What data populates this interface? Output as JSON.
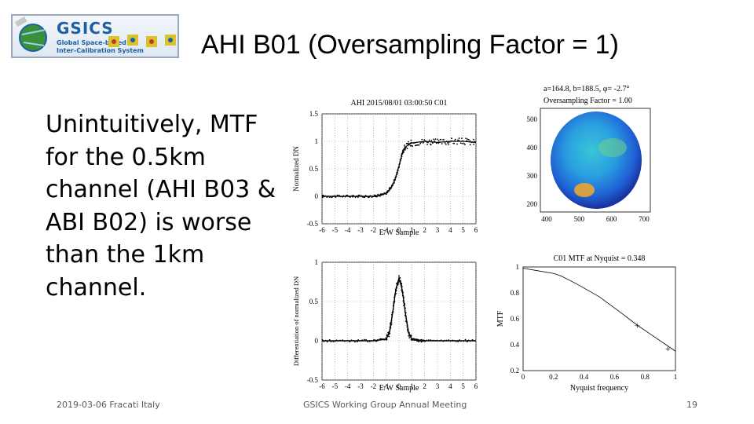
{
  "slide": {
    "title": "AHI B01 (Oversampling Factor = 1)",
    "bullet": "Unintuitively, MTF for the 0.5km channel (AHI B03 & ABI B02) is worse than the 1km channel.",
    "footer_left": "2019-03-06 Fracati Italy",
    "footer_center": "GSICS Working Group Annual Meeting",
    "page_number": "19"
  },
  "logo": {
    "word": "GSICS",
    "line1": "Global Space-based",
    "line2": "Inter-Calibration System"
  },
  "chart_data": [
    {
      "type": "scatter",
      "title": "AHI 2015/08/01 03:00:50 C01",
      "xlabel": "E/W Sample",
      "ylabel": "Normalized DN",
      "xlim": [
        -6,
        6
      ],
      "ylim": [
        -0.5,
        1.5
      ],
      "xticks": [
        "-6",
        "-5",
        "-4",
        "-3",
        "-2",
        "-1",
        "0",
        "1",
        "2",
        "3",
        "4",
        "5",
        "6"
      ],
      "yticks": [
        "-0.5",
        "0",
        "0.5",
        "1",
        "1.5"
      ],
      "x": [
        -6,
        -5,
        -4,
        -3,
        -2,
        -1.5,
        -1,
        -0.5,
        -0.25,
        0,
        0.25,
        0.5,
        1,
        2,
        3,
        4,
        5,
        6
      ],
      "y": [
        0.0,
        0.0,
        0.0,
        0.0,
        0.0,
        0.02,
        0.05,
        0.2,
        0.35,
        0.55,
        0.78,
        0.9,
        0.97,
        1.0,
        0.98,
        1.0,
        1.0,
        0.98
      ],
      "grid": true
    },
    {
      "type": "heatmap",
      "annotation_line1": "a=164.8, b=188.5, φ= -2.7°",
      "annotation_line2": "Oversampling Factor = 1.00",
      "xticks": [
        "400",
        "500",
        "600",
        "700"
      ],
      "yticks": [
        "500",
        "400",
        "300",
        "200"
      ]
    },
    {
      "type": "scatter",
      "xlabel": "E/W Sample",
      "ylabel": "Differentiation of normalized DN",
      "xlim": [
        -6,
        6
      ],
      "ylim": [
        -0.5,
        1
      ],
      "xticks": [
        "-6",
        "-5",
        "-4",
        "-3",
        "-2",
        "-1",
        "0",
        "1",
        "2",
        "3",
        "4",
        "5",
        "6"
      ],
      "yticks": [
        "-0.5",
        "0",
        "0.5",
        "1"
      ],
      "x": [
        -6,
        -4,
        -2,
        -1,
        -0.75,
        -0.5,
        -0.25,
        0,
        0.25,
        0.5,
        0.75,
        1,
        1.5,
        2,
        4,
        6
      ],
      "y": [
        0.0,
        0.0,
        0.0,
        0.02,
        0.1,
        0.35,
        0.65,
        0.8,
        0.65,
        0.35,
        0.1,
        0.02,
        0.0,
        0.0,
        0.0,
        0.0
      ],
      "grid": true
    },
    {
      "type": "line",
      "title": "C01 MTF at Nyquist = 0.348",
      "xlabel": "Nyquist frequency",
      "ylabel": "MTF",
      "xlim": [
        0,
        1
      ],
      "ylim": [
        0.2,
        1
      ],
      "xticks": [
        "0",
        "0.2",
        "0.4",
        "0.6",
        "0.8",
        "1"
      ],
      "yticks": [
        "0.2",
        "0.4",
        "0.6",
        "0.8",
        "1"
      ],
      "x": [
        0,
        0.1,
        0.2,
        0.25,
        0.35,
        0.5,
        0.65,
        0.75,
        0.85,
        1.0
      ],
      "y": [
        0.99,
        0.97,
        0.95,
        0.93,
        0.87,
        0.77,
        0.64,
        0.55,
        0.47,
        0.35
      ],
      "markers": [
        {
          "x": 0.75,
          "y": 0.55
        },
        {
          "x": 0.95,
          "y": 0.37
        }
      ]
    }
  ]
}
